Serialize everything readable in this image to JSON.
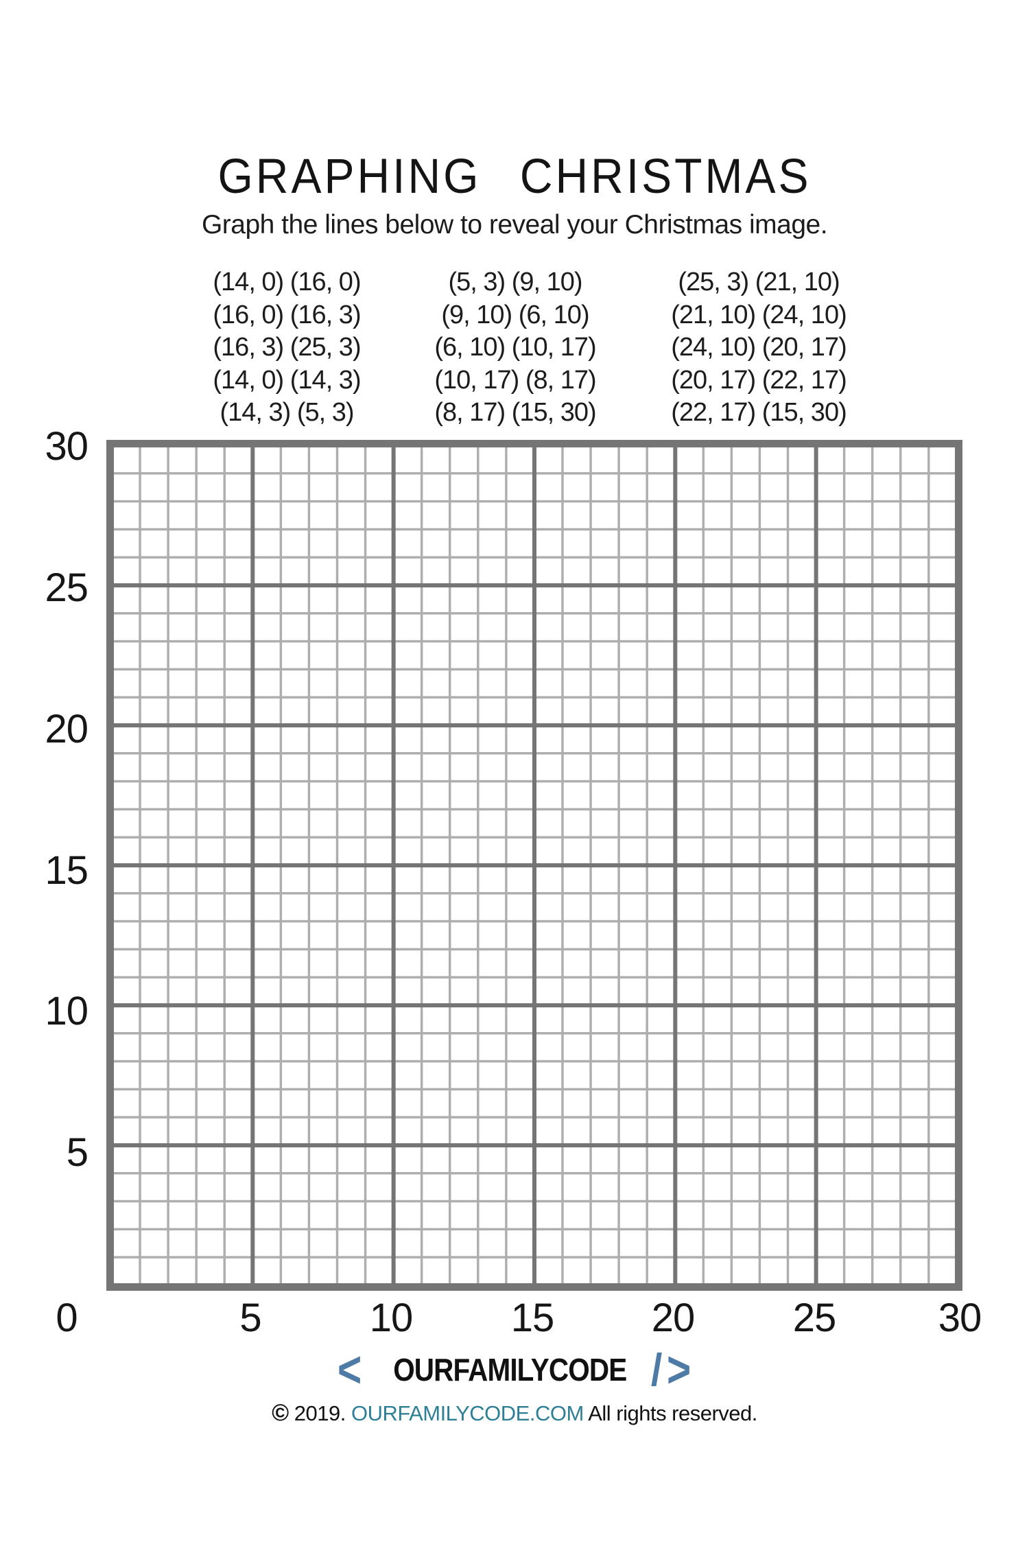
{
  "title": "GRAPHING CHRISTMAS",
  "subtitle": "Graph the lines below to reveal your Christmas image.",
  "coordinate_columns": [
    {
      "rows": [
        "(14, 0) (16, 0)",
        "(16, 0) (16, 3)",
        "(16, 3) (25, 3)",
        "(14, 0) (14, 3)",
        "(14, 3) (5, 3)"
      ]
    },
    {
      "rows": [
        "(5, 3) (9, 10)",
        "(9, 10) (6, 10)",
        "(6, 10) (10, 17)",
        "(10, 17) (8, 17)",
        "(8, 17) (15, 30)"
      ]
    },
    {
      "rows": [
        "(25, 3) (21, 10)",
        "(21, 10) (24, 10)",
        "(24, 10) (20, 17)",
        "(20, 17) (22, 17)",
        "(22, 17) (15, 30)"
      ]
    }
  ],
  "grid": {
    "origin_label": "0",
    "y_tick_labels": [
      "30",
      "25",
      "20",
      "15",
      "10",
      "5"
    ],
    "x_tick_labels": [
      "5",
      "10",
      "15",
      "20",
      "25",
      "30"
    ],
    "axis_min": 0,
    "axis_max": 30,
    "major_step": 5,
    "minor_step": 1
  },
  "chart_data": {
    "type": "line",
    "title": "GRAPHING CHRISTMAS",
    "xlabel": "",
    "ylabel": "",
    "xlim": [
      0,
      30
    ],
    "ylim": [
      0,
      30
    ],
    "x_ticks": [
      0,
      5,
      10,
      15,
      20,
      25,
      30
    ],
    "y_ticks": [
      0,
      5,
      10,
      15,
      20,
      25,
      30
    ],
    "grid": "on",
    "plotted_series": [],
    "instructed_segments": [
      [
        [
          14,
          0
        ],
        [
          16,
          0
        ]
      ],
      [
        [
          16,
          0
        ],
        [
          16,
          3
        ]
      ],
      [
        [
          16,
          3
        ],
        [
          25,
          3
        ]
      ],
      [
        [
          14,
          0
        ],
        [
          14,
          3
        ]
      ],
      [
        [
          14,
          3
        ],
        [
          5,
          3
        ]
      ],
      [
        [
          5,
          3
        ],
        [
          9,
          10
        ]
      ],
      [
        [
          9,
          10
        ],
        [
          6,
          10
        ]
      ],
      [
        [
          6,
          10
        ],
        [
          10,
          17
        ]
      ],
      [
        [
          10,
          17
        ],
        [
          8,
          17
        ]
      ],
      [
        [
          8,
          17
        ],
        [
          15,
          30
        ]
      ],
      [
        [
          25,
          3
        ],
        [
          21,
          10
        ]
      ],
      [
        [
          21,
          10
        ],
        [
          24,
          10
        ]
      ],
      [
        [
          24,
          10
        ],
        [
          20,
          17
        ]
      ],
      [
        [
          20,
          17
        ],
        [
          22,
          17
        ]
      ],
      [
        [
          22,
          17
        ],
        [
          15,
          30
        ]
      ]
    ]
  },
  "colors": {
    "grid_major": "#757575",
    "grid_minor": "#aeaeae",
    "brand_blue": "#4e7aa6",
    "link_teal": "#2e7f95"
  },
  "footer": {
    "logo_open_bracket": "<",
    "logo_text": "OURFAMILYCODE",
    "logo_slash": "/",
    "logo_close_bracket": ">",
    "copyright_symbol": "©",
    "copyright_year": " 2019. ",
    "copyright_site": "OURFAMILYCODE.COM",
    "copyright_rest": " All rights reserved."
  }
}
